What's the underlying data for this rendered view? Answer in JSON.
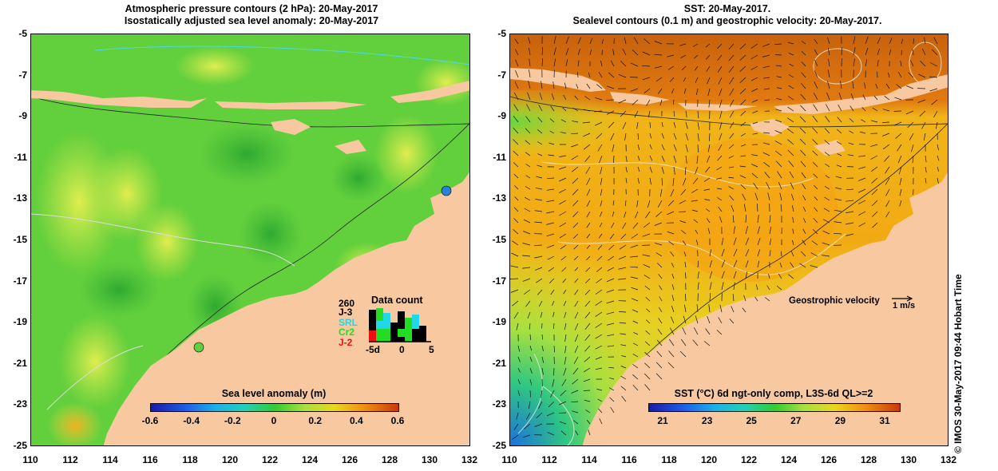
{
  "left_panel": {
    "title_line1": "Atmospheric pressure contours (2 hPa): 20-May-2017",
    "title_line2": "Isostatically adjusted sea level anomaly: 20-May-2017",
    "y_ticks": [
      "-5",
      "-7",
      "-9",
      "-11",
      "-13",
      "-15",
      "-17",
      "-19",
      "-21",
      "-23",
      "-25"
    ],
    "x_ticks": [
      "110",
      "112",
      "114",
      "116",
      "118",
      "120",
      "122",
      "124",
      "126",
      "128",
      "130",
      "132"
    ],
    "colorbar_label": "Sea level anomaly (m)",
    "colorbar_ticks": [
      "-0.6",
      "-0.4",
      "-0.2",
      "0",
      "0.2",
      "0.4",
      "0.6"
    ],
    "data_count": {
      "title": "Data count",
      "max_label": "260",
      "satellites": [
        {
          "name": "J-3",
          "color": "#000000"
        },
        {
          "name": "SRL",
          "color": "#22d8e8"
        },
        {
          "name": "Cr2",
          "color": "#22dd22"
        },
        {
          "name": "J-2",
          "color": "#ee1111"
        }
      ],
      "axis_ticks": [
        "-5d",
        "0",
        "5"
      ]
    }
  },
  "right_panel": {
    "title_line1": "SST: 20-May-2017.",
    "title_line2": "Sealevel contours (0.1 m) and geostrophic velocity: 20-May-2017.",
    "y_ticks": [
      "-5",
      "-7",
      "-9",
      "-11",
      "-13",
      "-15",
      "-17",
      "-19",
      "-21",
      "-23",
      "-25"
    ],
    "x_ticks": [
      "110",
      "112",
      "114",
      "116",
      "118",
      "120",
      "122",
      "124",
      "126",
      "128",
      "130",
      "132"
    ],
    "colorbar_label": "SST (°C) 6d ngt-only comp, L3S-6d QL>=2",
    "colorbar_ticks": [
      "21",
      "23",
      "25",
      "27",
      "29",
      "31"
    ],
    "velocity_legend_label": "Geostrophic velocity",
    "velocity_legend_unit": "1 m/s"
  },
  "credit": "© IMOS 30-May-2017 09:44 Hobart Time",
  "colors": {
    "land": "#f8c9a0",
    "sla_green": "#5ecf3a",
    "sla_yellow": "#c8e84a",
    "sst_orange": "#f5a514",
    "sst_red": "#c8550a",
    "sst_yellow": "#e8d818",
    "sst_green": "#38c838"
  }
}
